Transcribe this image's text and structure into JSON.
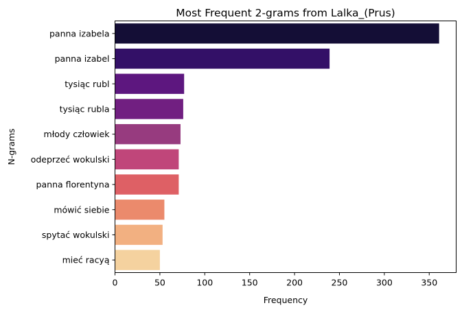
{
  "chart_data": {
    "type": "bar",
    "orientation": "horizontal",
    "title": "Most Frequent 2-grams from Lalka_(Prus)",
    "xlabel": "Frequency",
    "ylabel": "N-grams",
    "xlim": [
      0,
      380
    ],
    "xticks": [
      0,
      50,
      100,
      150,
      200,
      250,
      300,
      350
    ],
    "grid": false,
    "categories": [
      "panna izabela",
      "panna izabel",
      "tysiąc rubl",
      "tysiąc rubla",
      "młody człowiek",
      "odeprzeć wokulski",
      "panna florentyna",
      "mówić siebie",
      "spytać wokulski",
      "mieć racyą"
    ],
    "values": [
      361,
      239,
      77,
      76,
      73,
      71,
      71,
      55,
      53,
      50
    ],
    "colors": [
      "#140e36",
      "#331067",
      "#5d177f",
      "#711f81",
      "#973b7f",
      "#c0467a",
      "#de6065",
      "#eb8a6c",
      "#f2b081",
      "#f5d29f"
    ]
  }
}
